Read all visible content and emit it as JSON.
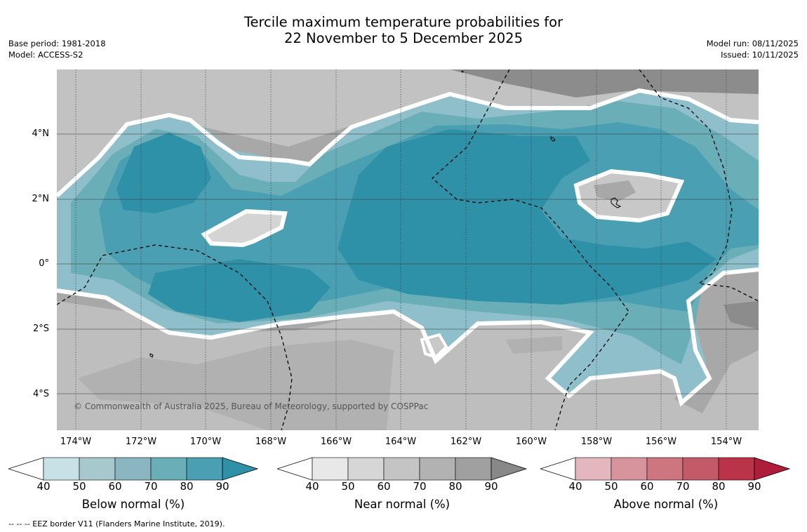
{
  "title_line1": "Tercile maximum temperature probabilities for",
  "title_line2": "22 November to 5 December 2025",
  "base_period": "Base period: 1981-2018",
  "model": "Model: ACCESS-S2",
  "model_run": "Model run: 08/11/2025",
  "issued": "Issued: 10/11/2025",
  "copyright": "© Commonwealth of Australia 2025, Bureau of Meteorology, supported by COSPPac",
  "footnote": "--  --  -- EEZ border V11 (Flanders Marine Institute, 2019).",
  "lat_labels": [
    "4°N",
    "2°N",
    "0°",
    "2°S",
    "4°S"
  ],
  "lon_labels": [
    "174°W",
    "172°W",
    "170°W",
    "168°W",
    "166°W",
    "164°W",
    "162°W",
    "160°W",
    "158°W",
    "156°W",
    "154°W"
  ],
  "legends": [
    {
      "title": "Below normal (%)",
      "ticks": [
        "40",
        "50",
        "60",
        "70",
        "80",
        "90"
      ],
      "colors": [
        "#ffffff",
        "#c8e1e7",
        "#a7c8cc",
        "#8ab6c2",
        "#6aaeb8",
        "#4aa0b2",
        "#2e91a8"
      ]
    },
    {
      "title": "Near normal (%)",
      "ticks": [
        "40",
        "50",
        "60",
        "70",
        "80",
        "90"
      ],
      "colors": [
        "#ffffff",
        "#e8e8e8",
        "#d6d6d6",
        "#c4c4c4",
        "#b2b2b2",
        "#a0a0a0",
        "#888888"
      ]
    },
    {
      "title": "Above normal (%)",
      "ticks": [
        "40",
        "50",
        "60",
        "70",
        "80",
        "90"
      ],
      "colors": [
        "#ffffff",
        "#e3b7bd",
        "#d8949d",
        "#cd7680",
        "#c45a67",
        "#bb3349",
        "#ae1e3a"
      ]
    }
  ]
}
